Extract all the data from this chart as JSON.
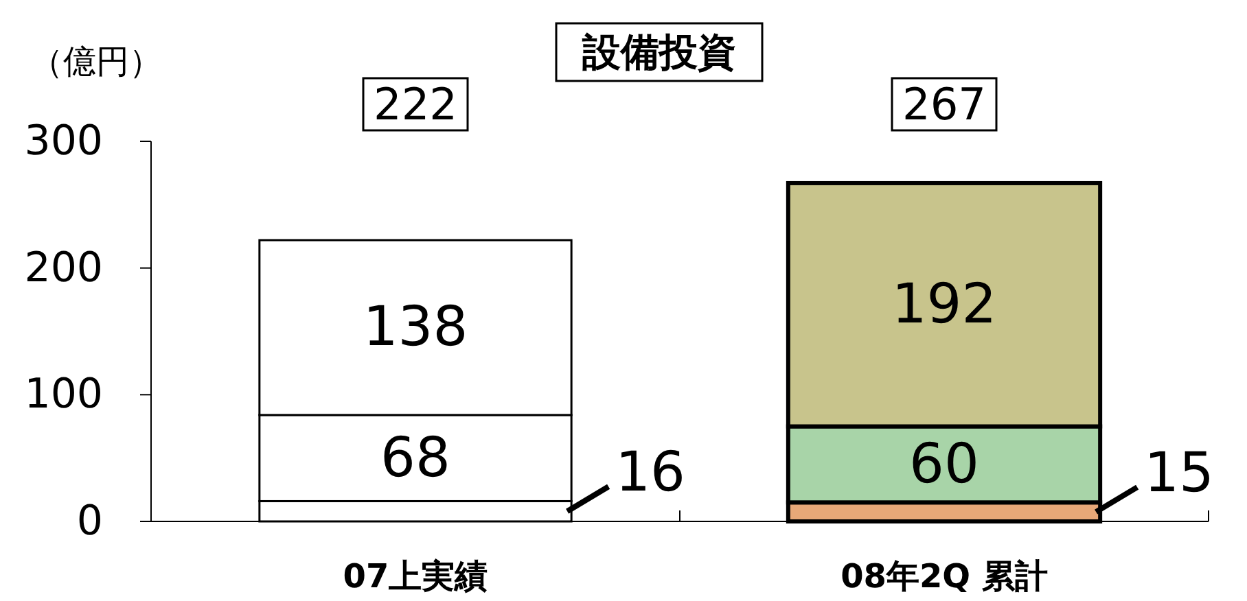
{
  "chart_data": {
    "type": "bar",
    "stacked": true,
    "title": "設備投資",
    "ylabel": "（億円）",
    "categories": [
      "07上実績",
      "08年2Q 累計"
    ],
    "series": [
      {
        "colors": [
          "#ffffff",
          "#e8a878"
        ],
        "values": [
          16,
          15
        ]
      },
      {
        "colors": [
          "#ffffff",
          "#a8d4a8"
        ],
        "values": [
          68,
          60
        ]
      },
      {
        "colors": [
          "#ffffff",
          "#c8c48c"
        ],
        "values": [
          138,
          192
        ]
      }
    ],
    "totals": [
      "222",
      "267"
    ],
    "ylim": [
      0,
      300
    ],
    "yticks": [
      0,
      100,
      200,
      300
    ],
    "data_labels": true
  }
}
